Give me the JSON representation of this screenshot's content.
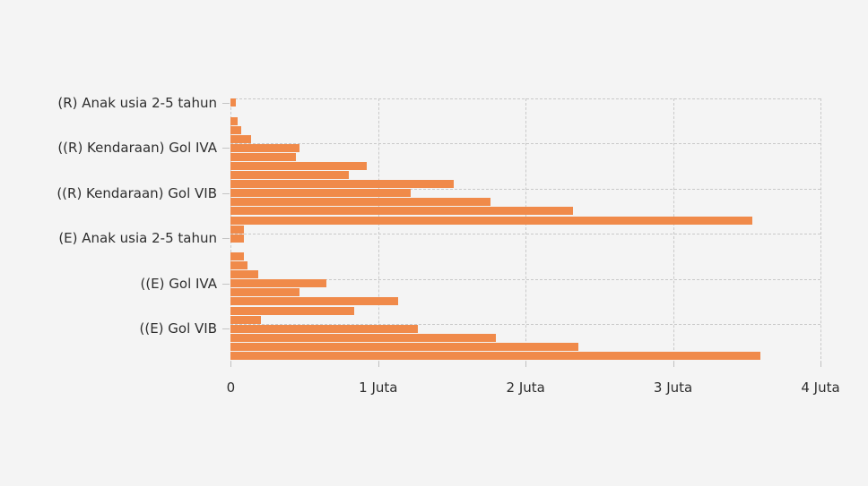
{
  "chart_data": {
    "type": "bar",
    "orientation": "horizontal",
    "title": "",
    "xlabel": "",
    "ylabel": "",
    "unit_label": "Juta",
    "x_axis": {
      "ticks": [
        "0",
        "1 Juta",
        "2 Juta",
        "3 Juta",
        "4 Juta"
      ],
      "tick_values_juta": [
        0,
        1,
        2,
        3,
        4
      ],
      "range_juta": [
        0,
        4
      ],
      "grid": "dashed"
    },
    "y_axis": {
      "tick_labels": [
        "(R) Anak usia 2-5 tahun",
        "((R) Kendaraan) Gol IVA",
        "((R) Kendaraan) Gol VIB",
        "(E) Anak usia 2-5 tahun",
        "((E) Gol IVA",
        "((E) Gol VIB"
      ],
      "tick_slot_indices": [
        0,
        5,
        10,
        15,
        20,
        25
      ],
      "total_slots": 29,
      "grid": "dashed"
    },
    "values_juta": [
      0.035,
      0,
      0.046,
      0.071,
      0.139,
      0.468,
      0.44,
      0.92,
      0.8,
      1.51,
      1.22,
      1.76,
      2.32,
      3.54,
      0.088,
      0.088,
      0,
      0.088,
      0.115,
      0.184,
      0.648,
      0.468,
      1.137,
      0.839,
      0.204,
      1.271,
      1.798,
      2.36,
      3.59
    ],
    "legend": null,
    "colors": {
      "bar": "#f08a4a",
      "background": "#f4f4f4",
      "grid": "#c9c9c9",
      "text": "#2e2e2e"
    }
  }
}
